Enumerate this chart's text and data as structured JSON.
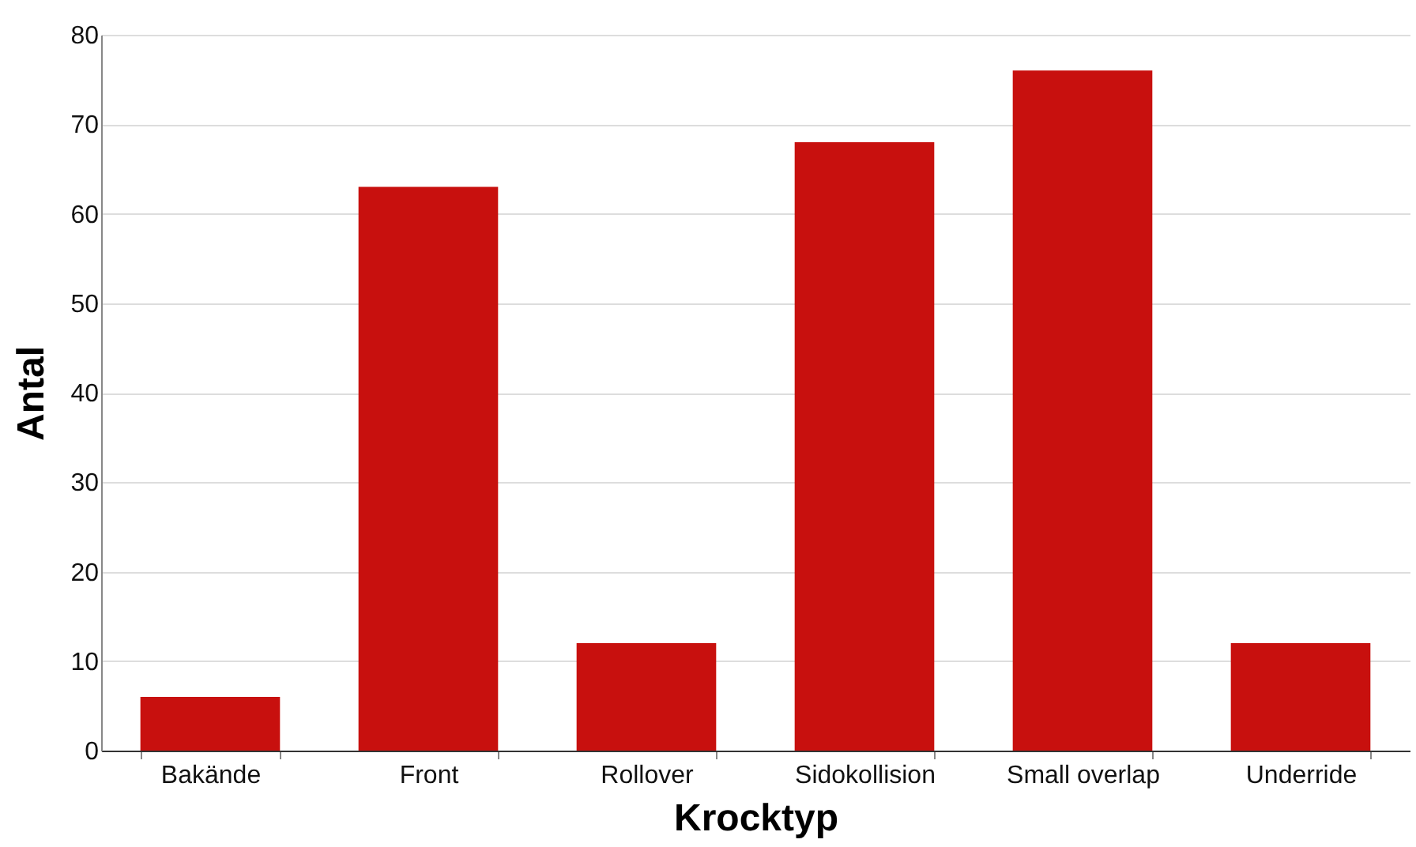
{
  "chart_data": {
    "type": "bar",
    "xlabel": "Krocktyp",
    "ylabel": "Antal",
    "categories": [
      "Bakände",
      "Front",
      "Rollover",
      "Sidokollision",
      "Small overlap",
      "Underride"
    ],
    "values": [
      6,
      63,
      12,
      68,
      76,
      12
    ],
    "color": "#c8100e",
    "ylim": [
      0,
      80
    ],
    "yticks": [
      0,
      10,
      20,
      30,
      40,
      50,
      60,
      70,
      80
    ],
    "grid": "y"
  }
}
